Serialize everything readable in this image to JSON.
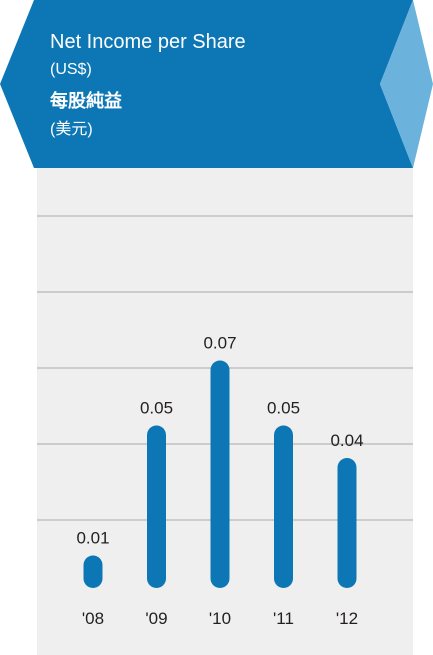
{
  "header": {
    "title_en": "Net Income per Share",
    "unit_en": "(US$)",
    "title_zh": "每股純益",
    "unit_zh": "(美元)"
  },
  "colors": {
    "banner": "#0d77b5",
    "arrow_light": "#6bb3dc",
    "bar": "#0d77b5",
    "panel": "#efefef",
    "grid": "#a8a8a8",
    "text": "#231f20"
  },
  "chart_data": {
    "type": "bar",
    "title": "Net Income per Share (US$) 每股純益 (美元)",
    "categories": [
      "'08",
      "'09",
      "'10",
      "'11",
      "'12"
    ],
    "values": [
      0.01,
      0.05,
      0.07,
      0.05,
      0.04
    ],
    "data_labels": [
      "0.01",
      "0.05",
      "0.07",
      "0.05",
      "0.04"
    ],
    "ylim": [
      0,
      0.08
    ],
    "grid": true,
    "gridline_count": 5
  }
}
